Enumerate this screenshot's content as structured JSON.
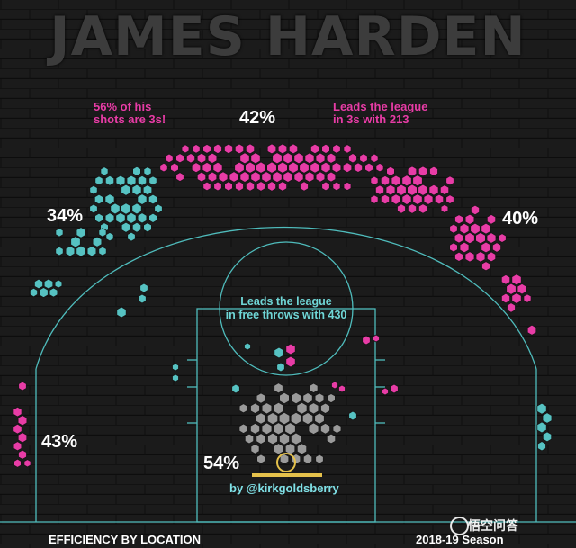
{
  "title": "JAMES HARDEN",
  "footer": {
    "left": "EFFICIENCY BY LOCATION",
    "right": "2018-19 Season"
  },
  "watermark": "悟空问答",
  "credit": "by @kirkgoldsberry",
  "colors": {
    "three_pointers": "#e83ca6",
    "midrange": "#56c2c2",
    "paint": "#9a9a9a",
    "court_lines": "#4fbcbc",
    "rim": "#e5c14b"
  },
  "chart_data": {
    "type": "hexbin-shot-chart",
    "title": "JAMES HARDEN",
    "season": "2018-19 Season",
    "subtitle": "EFFICIENCY BY LOCATION",
    "zones": [
      {
        "zone": "left corner three",
        "fg_pct": "43%"
      },
      {
        "zone": "left wing three",
        "fg_pct": "34%"
      },
      {
        "zone": "top of key three",
        "fg_pct": "42%"
      },
      {
        "zone": "right wing three",
        "fg_pct": "40%"
      },
      {
        "zone": "restricted area",
        "fg_pct": "54%"
      }
    ],
    "annotations": [
      "56% of his shots are 3s!",
      "Leads the league in 3s with 213",
      "Leads the league in free throws with 430"
    ]
  },
  "labels": {
    "pct_left_corner": "43%",
    "pct_left_wing": "34%",
    "pct_top": "42%",
    "pct_right_wing": "40%",
    "pct_rim": "54%",
    "note_3s_share_l1": "56% of his",
    "note_3s_share_l2": "shots are 3s!",
    "note_3s_lead_l1": "Leads the league",
    "note_3s_lead_l2": "in 3s with 213",
    "note_ft_l1": "Leads the league",
    "note_ft_l2": "in free throws with 430"
  }
}
